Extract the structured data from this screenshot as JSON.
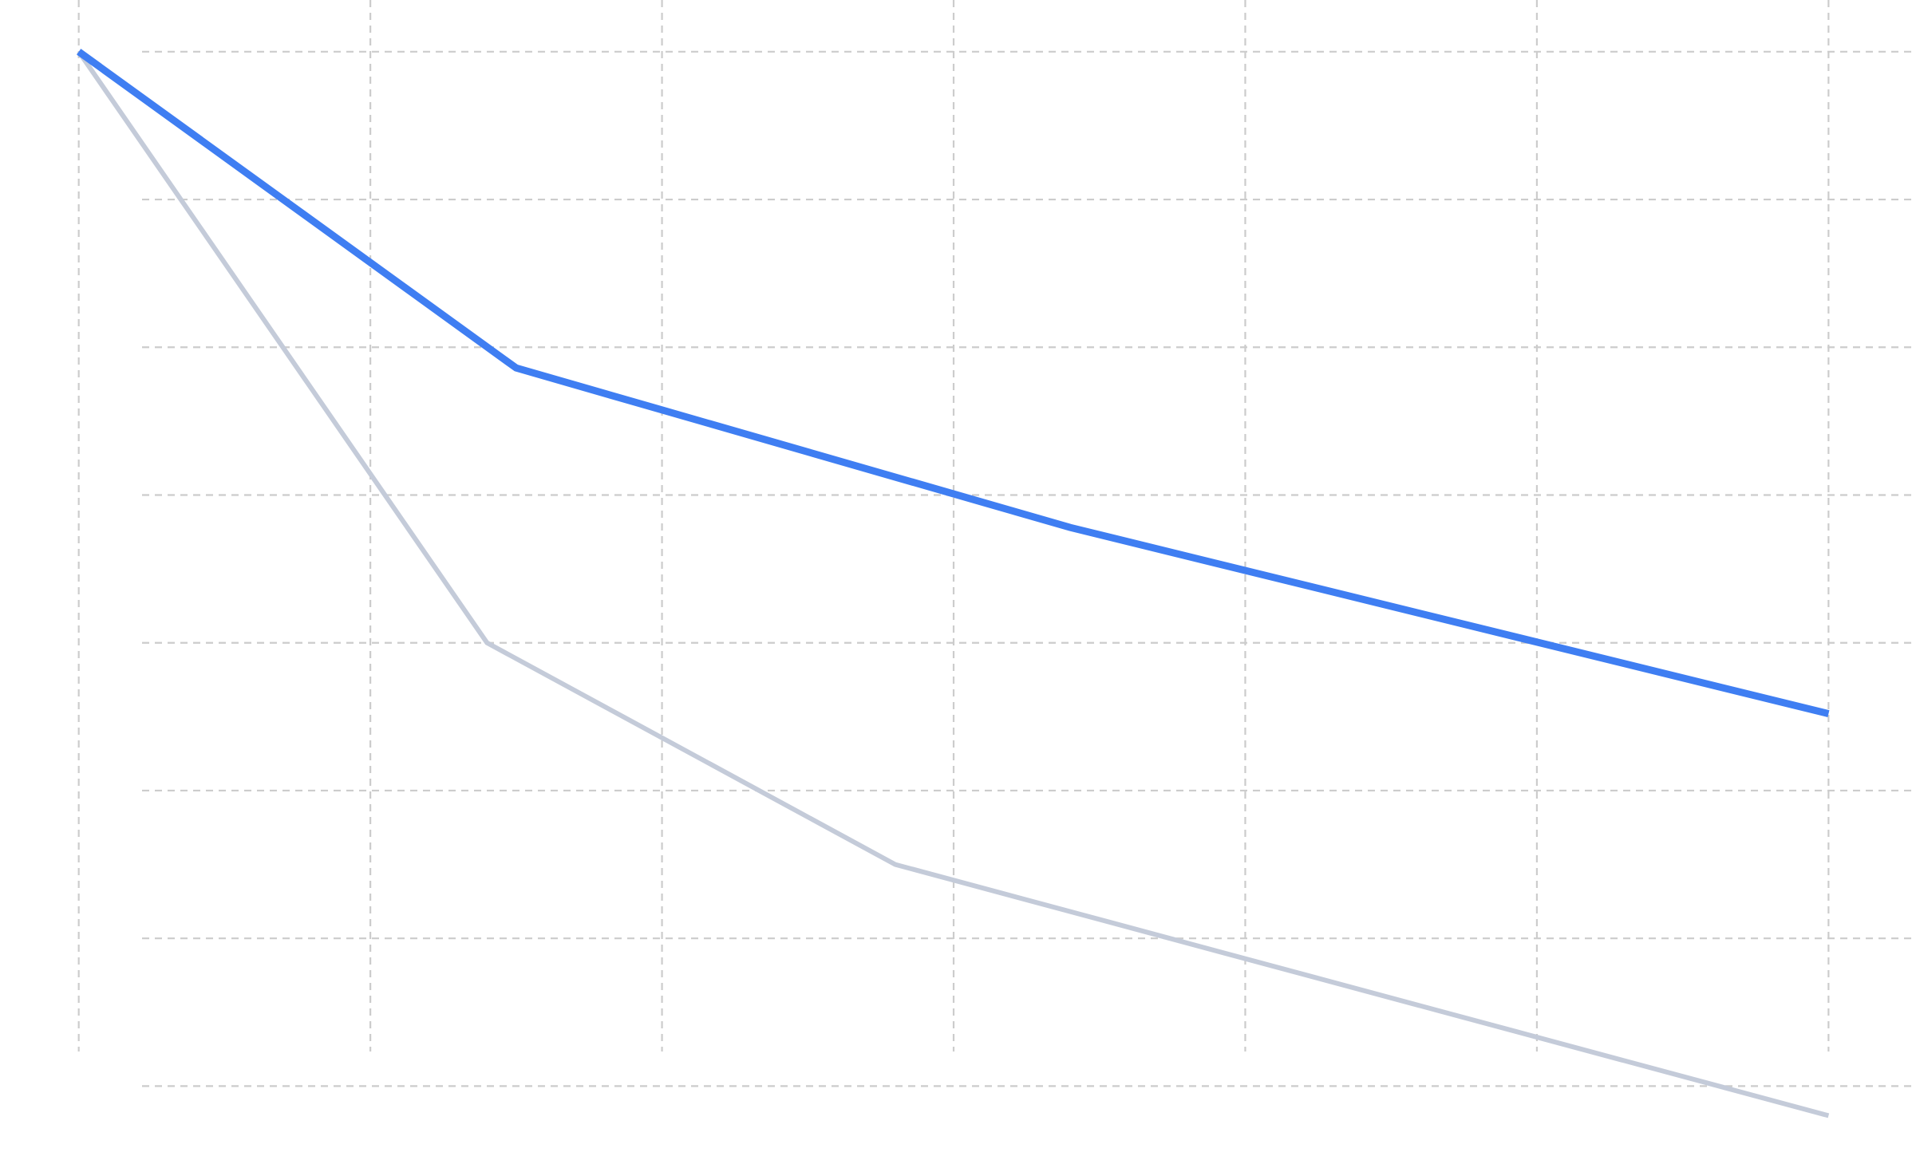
{
  "chart_data": {
    "type": "line",
    "grid": true,
    "x_gridlines": [
      1,
      2,
      3,
      4,
      5,
      6,
      7
    ],
    "y_gridlines": [
      0,
      1,
      2,
      3,
      4,
      5,
      6,
      7
    ],
    "xlim": [
      0.73,
      7.3
    ],
    "ylim": [
      -0.5,
      7.35
    ],
    "series": [
      {
        "color": "#3f7ef2",
        "emphasis": "primary",
        "x": [
          1,
          2.5,
          4.4,
          7
        ],
        "y": [
          7,
          4.86,
          3.78,
          2.52
        ]
      },
      {
        "color": "#c4cbd9",
        "emphasis": "secondary",
        "x": [
          1,
          2.4,
          3.8,
          7
        ],
        "y": [
          7,
          3,
          1.5,
          -0.2
        ]
      }
    ]
  }
}
